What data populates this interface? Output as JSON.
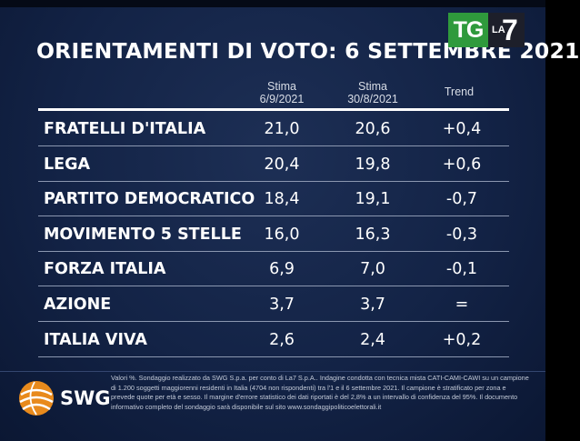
{
  "title": "ORIENTAMENTI DI VOTO: 6 SETTEMBRE 2021",
  "logo": {
    "tg": "TG",
    "la": "LA",
    "seven": "7"
  },
  "columns": {
    "current": {
      "line1": "Stima",
      "line2": "6/9/2021"
    },
    "previous": {
      "line1": "Stima",
      "line2": "30/8/2021"
    },
    "trend": "Trend"
  },
  "chart_data": {
    "type": "table",
    "title": "ORIENTAMENTI DI VOTO: 6 SETTEMBRE 2021",
    "columns": [
      "Stima 6/9/2021",
      "Stima 30/8/2021",
      "Trend"
    ],
    "rows": [
      {
        "party": "FRATELLI D'ITALIA",
        "current": "21,0",
        "previous": "20,6",
        "trend": "+0,4"
      },
      {
        "party": "LEGA",
        "current": "20,4",
        "previous": "19,8",
        "trend": "+0,6"
      },
      {
        "party": "PARTITO DEMOCRATICO",
        "current": "18,4",
        "previous": "19,1",
        "trend": "-0,7"
      },
      {
        "party": "MOVIMENTO 5 STELLE",
        "current": "16,0",
        "previous": "16,3",
        "trend": "-0,3"
      },
      {
        "party": "FORZA ITALIA",
        "current": "6,9",
        "previous": "7,0",
        "trend": "-0,1"
      },
      {
        "party": "AZIONE",
        "current": "3,7",
        "previous": "3,7",
        "trend": "="
      },
      {
        "party": "ITALIA VIVA",
        "current": "2,6",
        "previous": "2,4",
        "trend": "+0,2"
      }
    ]
  },
  "footer": {
    "brand": "SWG",
    "note": "Valori %. Sondaggio realizzato da SWG S.p.a. per conto di La7 S.p.A.. Indagine condotta con tecnica mista CATI-CAMI-CAWI su un campione di 1.200 soggetti maggiorenni residenti in Italia (4704 non rispondenti) tra l'1 e il 6 settembre 2021. Il campione è stratificato per zona e prevede quote per età e sesso. Il margine d'errore statistico dei dati riportati è del 2,8% a un intervallo di confidenza del 95%. Il documento informativo completo del sondaggio sarà disponibile sul sito www.sondaggipoliticoelettorali.it"
  },
  "colors": {
    "background": "#132346",
    "text": "#ffffff",
    "tg_green": "#2f9a3c",
    "swg_orange": "#e88a1c"
  }
}
